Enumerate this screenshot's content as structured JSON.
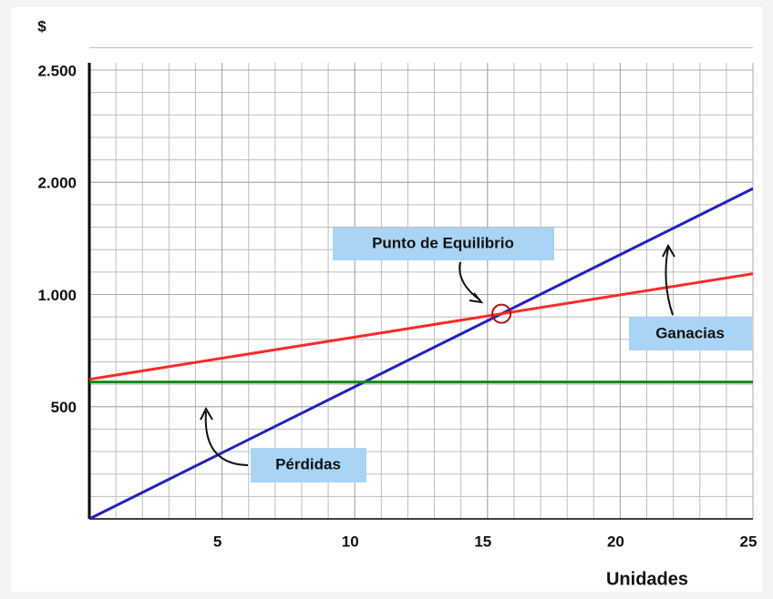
{
  "chart_data": {
    "type": "line",
    "y_label": "$",
    "x_label": "Unidades",
    "x": [
      0,
      25
    ],
    "series": [
      {
        "color": "#2222bb",
        "values": [
          0,
          1944
        ]
      },
      {
        "color": "#ff2a2a",
        "values": [
          622,
          1185
        ]
      },
      {
        "color": "#148a14",
        "values": [
          610,
          610
        ]
      }
    ],
    "xlim": [
      0,
      25
    ],
    "xticks": [
      5,
      10,
      15,
      20,
      25
    ],
    "ylim": [
      0,
      2500
    ],
    "yticks": [
      {
        "value": 500,
        "label": "500"
      },
      {
        "value": 1000,
        "label": "1.000"
      },
      {
        "value": 2000,
        "label": "2.000"
      },
      {
        "value": 2500,
        "label": "2.500"
      }
    ],
    "grid": true,
    "annotations": [
      "Punto de Equilibrio",
      "Ganacias",
      "Pérdidas"
    ]
  }
}
